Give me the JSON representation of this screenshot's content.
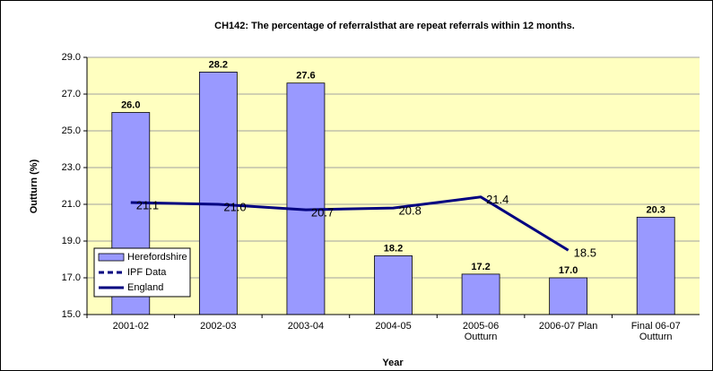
{
  "chart_data": {
    "type": "bar",
    "title": "CH142: The percentage of referralsthat are repeat referrals within 12 months.",
    "x_label": "Year",
    "y_label": "Outturn (%)",
    "categories": [
      "2001-02",
      "2002-03",
      "2003-04",
      "2004-05",
      "2005-06\nOutturn",
      "2006-07 Plan",
      "Final 06-07\nOutturn"
    ],
    "series": [
      {
        "name": "Herefordshire",
        "type": "bar",
        "color": "#9999ff",
        "values": [
          26.0,
          28.2,
          27.6,
          18.2,
          17.2,
          17.0,
          20.3
        ],
        "value_labels": [
          "26.0",
          "28.2",
          "27.6",
          "18.2",
          "17.2",
          "17.0",
          "20.3"
        ]
      },
      {
        "name": "IPF Data",
        "type": "line",
        "dashed": true,
        "color": "#000080",
        "values": [
          null,
          null,
          null,
          null,
          null,
          null,
          null
        ]
      },
      {
        "name": "England",
        "type": "line",
        "color": "#000080",
        "values": [
          21.1,
          21.0,
          20.7,
          20.8,
          21.4,
          18.5,
          null
        ],
        "value_labels": [
          "21.1",
          "21.0",
          "20.7",
          "20.8",
          "21.4",
          "18.5",
          null
        ]
      }
    ],
    "ylim": [
      15,
      29
    ],
    "yticks": [
      {
        "value": 15,
        "label": "15.0"
      },
      {
        "value": 17,
        "label": "17.0"
      },
      {
        "value": 19,
        "label": "19.0"
      },
      {
        "value": 21,
        "label": "21.0"
      },
      {
        "value": 23,
        "label": "23.0"
      },
      {
        "value": 25,
        "label": "25.0"
      },
      {
        "value": 27,
        "label": "27.0"
      },
      {
        "value": 29,
        "label": "29.0"
      }
    ],
    "grid": true,
    "legend": "lower left"
  }
}
